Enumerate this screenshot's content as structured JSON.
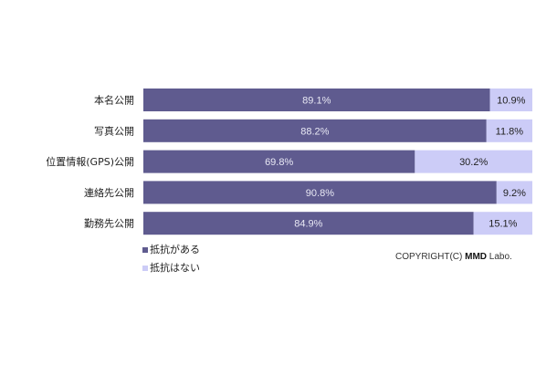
{
  "chart_data": {
    "type": "bar",
    "orientation": "horizontal",
    "stacked": true,
    "title": "",
    "xlabel": "",
    "ylabel": "",
    "xlim": [
      0,
      100
    ],
    "categories": [
      "本名公開",
      "写真公開",
      "位置情報(GPS)公開",
      "連絡先公開",
      "勤務先公開"
    ],
    "series": [
      {
        "name": "抵抗がある",
        "color": "#5f5b8f",
        "values": [
          89.1,
          88.2,
          69.8,
          90.8,
          84.9
        ]
      },
      {
        "name": "抵抗はない",
        "color": "#ccccf7",
        "values": [
          10.9,
          11.8,
          30.2,
          9.2,
          15.1
        ]
      }
    ],
    "value_suffix": "%",
    "legend_placement": "bottom-left",
    "grid": false
  },
  "copyright": {
    "prefix": "COPYRIGHT(C) ",
    "brand": "MMD",
    "suffix": " Labo."
  }
}
